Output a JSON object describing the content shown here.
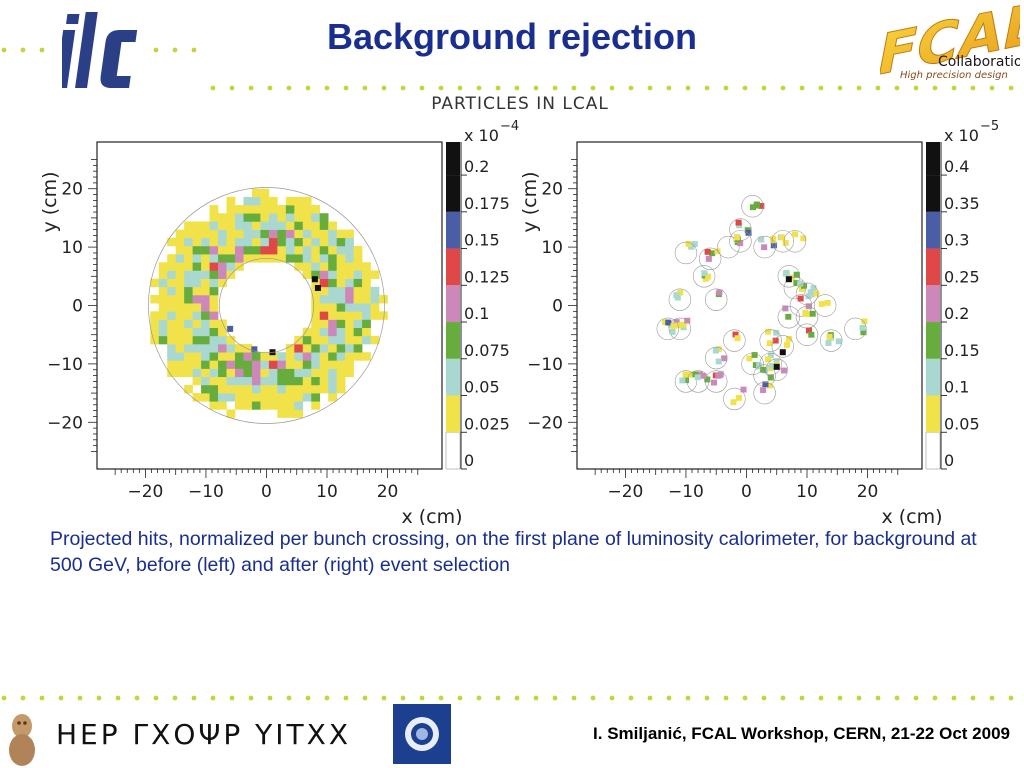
{
  "slide": {
    "title": "Background rejection",
    "plot_heading": "PARTICLES IN LCAL",
    "caption": "Projected hits, normalized per bunch crossing, on the first plane of luminosity calorimeter, for background at 500 GeV, before (left) and after (right) event selection",
    "footer": "I. Smiljanić, FCAL Workshop, CERN, 21-22 Oct 2009",
    "logo_left": "ilc",
    "logo_right_main": "FCAL",
    "logo_right_sub1": "Collaboration",
    "logo_right_sub2": "High precision design",
    "footer_glyph_text": "ΗΕΡ  ΓΧΟΨΡ  ΥΙΤΧΧ",
    "colors": {
      "title": "#1a2e8f",
      "dots": "#c8d23c",
      "accent_logo": "#2b3f86"
    }
  },
  "chart_data": [
    {
      "type": "heatmap",
      "title": "",
      "xlabel": "x (cm)",
      "ylabel": "y (cm)",
      "xlim": [
        -28,
        29
      ],
      "ylim": [
        -28,
        28
      ],
      "xticks": [
        "−20",
        "−10",
        "0",
        "10",
        "20"
      ],
      "yticks": [
        "20",
        "10",
        "0",
        "−10",
        "−20"
      ],
      "xtick_values": [
        -20,
        -10,
        0,
        10,
        20
      ],
      "ytick_values": [
        20,
        10,
        0,
        -10,
        -20
      ],
      "colorbar": {
        "multiplier": "x 10",
        "exponent": "−4",
        "levels": [
          "0",
          "0.025",
          "0.05",
          "0.075",
          "0.1",
          "0.125",
          "0.15",
          "0.175",
          "0.2"
        ],
        "colors": [
          "#ffffff",
          "#f2e24a",
          "#a8d8d0",
          "#66ad3e",
          "#cc88b8",
          "#e04848",
          "#4a5ea6",
          "#111111"
        ]
      },
      "distribution": "annulus, inner radius ≈ 8 cm, outer radius ≈ 19 cm, hot spots near (8,5) and (1,-8)"
    },
    {
      "type": "heatmap",
      "title": "",
      "xlabel": "x (cm)",
      "ylabel": "y (cm)",
      "xlim": [
        -28,
        29
      ],
      "ylim": [
        -28,
        28
      ],
      "xticks": [
        "−20",
        "−10",
        "0",
        "10",
        "20"
      ],
      "yticks": [
        "20",
        "10",
        "0",
        "−10",
        "−20"
      ],
      "xtick_values": [
        -20,
        -10,
        0,
        10,
        20
      ],
      "ytick_values": [
        20,
        10,
        0,
        -10,
        -20
      ],
      "colorbar": {
        "multiplier": "x 10",
        "exponent": "−5",
        "levels": [
          "0",
          "0.05",
          "0.1",
          "0.15",
          "0.2",
          "0.25",
          "0.3",
          "0.35",
          "0.4"
        ],
        "colors": [
          "#ffffff",
          "#f2e24a",
          "#a8d8d0",
          "#66ad3e",
          "#cc88b8",
          "#e04848",
          "#4a5ea6",
          "#111111"
        ]
      },
      "distribution": "sparse clusters on a ring r ≈ 8–18 cm, hot spots near (7,4) and (5,-10)"
    }
  ]
}
